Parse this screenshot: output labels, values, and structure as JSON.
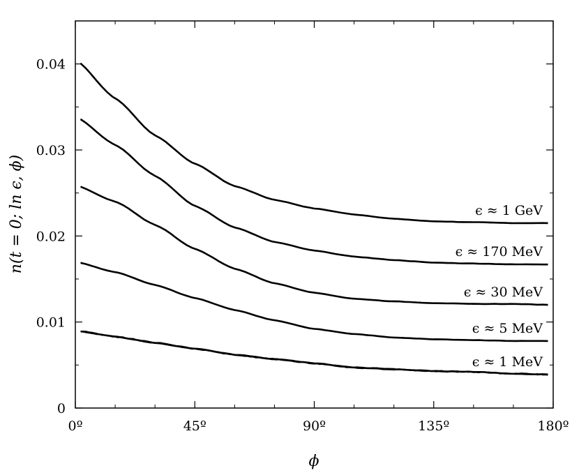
{
  "chart_data": {
    "type": "line",
    "title": "",
    "xlabel": "ϕ",
    "ylabel": "n(t = 0; ln ϵ, ϕ)",
    "xlim": [
      0,
      180
    ],
    "ylim": [
      0,
      0.045
    ],
    "x_ticks": [
      0,
      45,
      90,
      135,
      180
    ],
    "x_tick_labels": [
      "0º",
      "45º",
      "90º",
      "135º",
      "180º"
    ],
    "y_ticks": [
      0,
      0.01,
      0.02,
      0.03,
      0.04
    ],
    "y_tick_labels": [
      "0",
      "0.01",
      "0.02",
      "0.03",
      "0.04"
    ],
    "grid": false,
    "legend": "none",
    "x": [
      0,
      15,
      30,
      45,
      60,
      75,
      90,
      105,
      120,
      135,
      150,
      165,
      178
    ],
    "series": [
      {
        "label": "ϵ ≈ 1 GeV",
        "values": [
          0.0405,
          0.036,
          0.0317,
          0.0284,
          0.0258,
          0.0242,
          0.0232,
          0.0225,
          0.022,
          0.0217,
          0.0216,
          0.0215,
          0.0215
        ]
      },
      {
        "label": "ϵ ≈ 170 MeV",
        "values": [
          0.0339,
          0.0306,
          0.027,
          0.0235,
          0.021,
          0.0193,
          0.0183,
          0.0176,
          0.0172,
          0.0169,
          0.0168,
          0.0167,
          0.0167
        ]
      },
      {
        "label": "ϵ ≈ 30 MeV",
        "values": [
          0.0259,
          0.024,
          0.0213,
          0.0185,
          0.0162,
          0.0145,
          0.0134,
          0.0127,
          0.0124,
          0.0122,
          0.0121,
          0.0121,
          0.012
        ]
      },
      {
        "label": "ϵ ≈ 5 MeV",
        "values": [
          0.017,
          0.0158,
          0.0143,
          0.0128,
          0.0114,
          0.0102,
          0.0092,
          0.0086,
          0.0082,
          0.008,
          0.0079,
          0.0078,
          0.0078
        ]
      },
      {
        "label": "ϵ ≈ 1 MeV",
        "values": [
          0.009,
          0.0083,
          0.0076,
          0.0069,
          0.0062,
          0.0057,
          0.0052,
          0.0047,
          0.0045,
          0.0043,
          0.0042,
          0.004,
          0.0039
        ]
      }
    ]
  }
}
